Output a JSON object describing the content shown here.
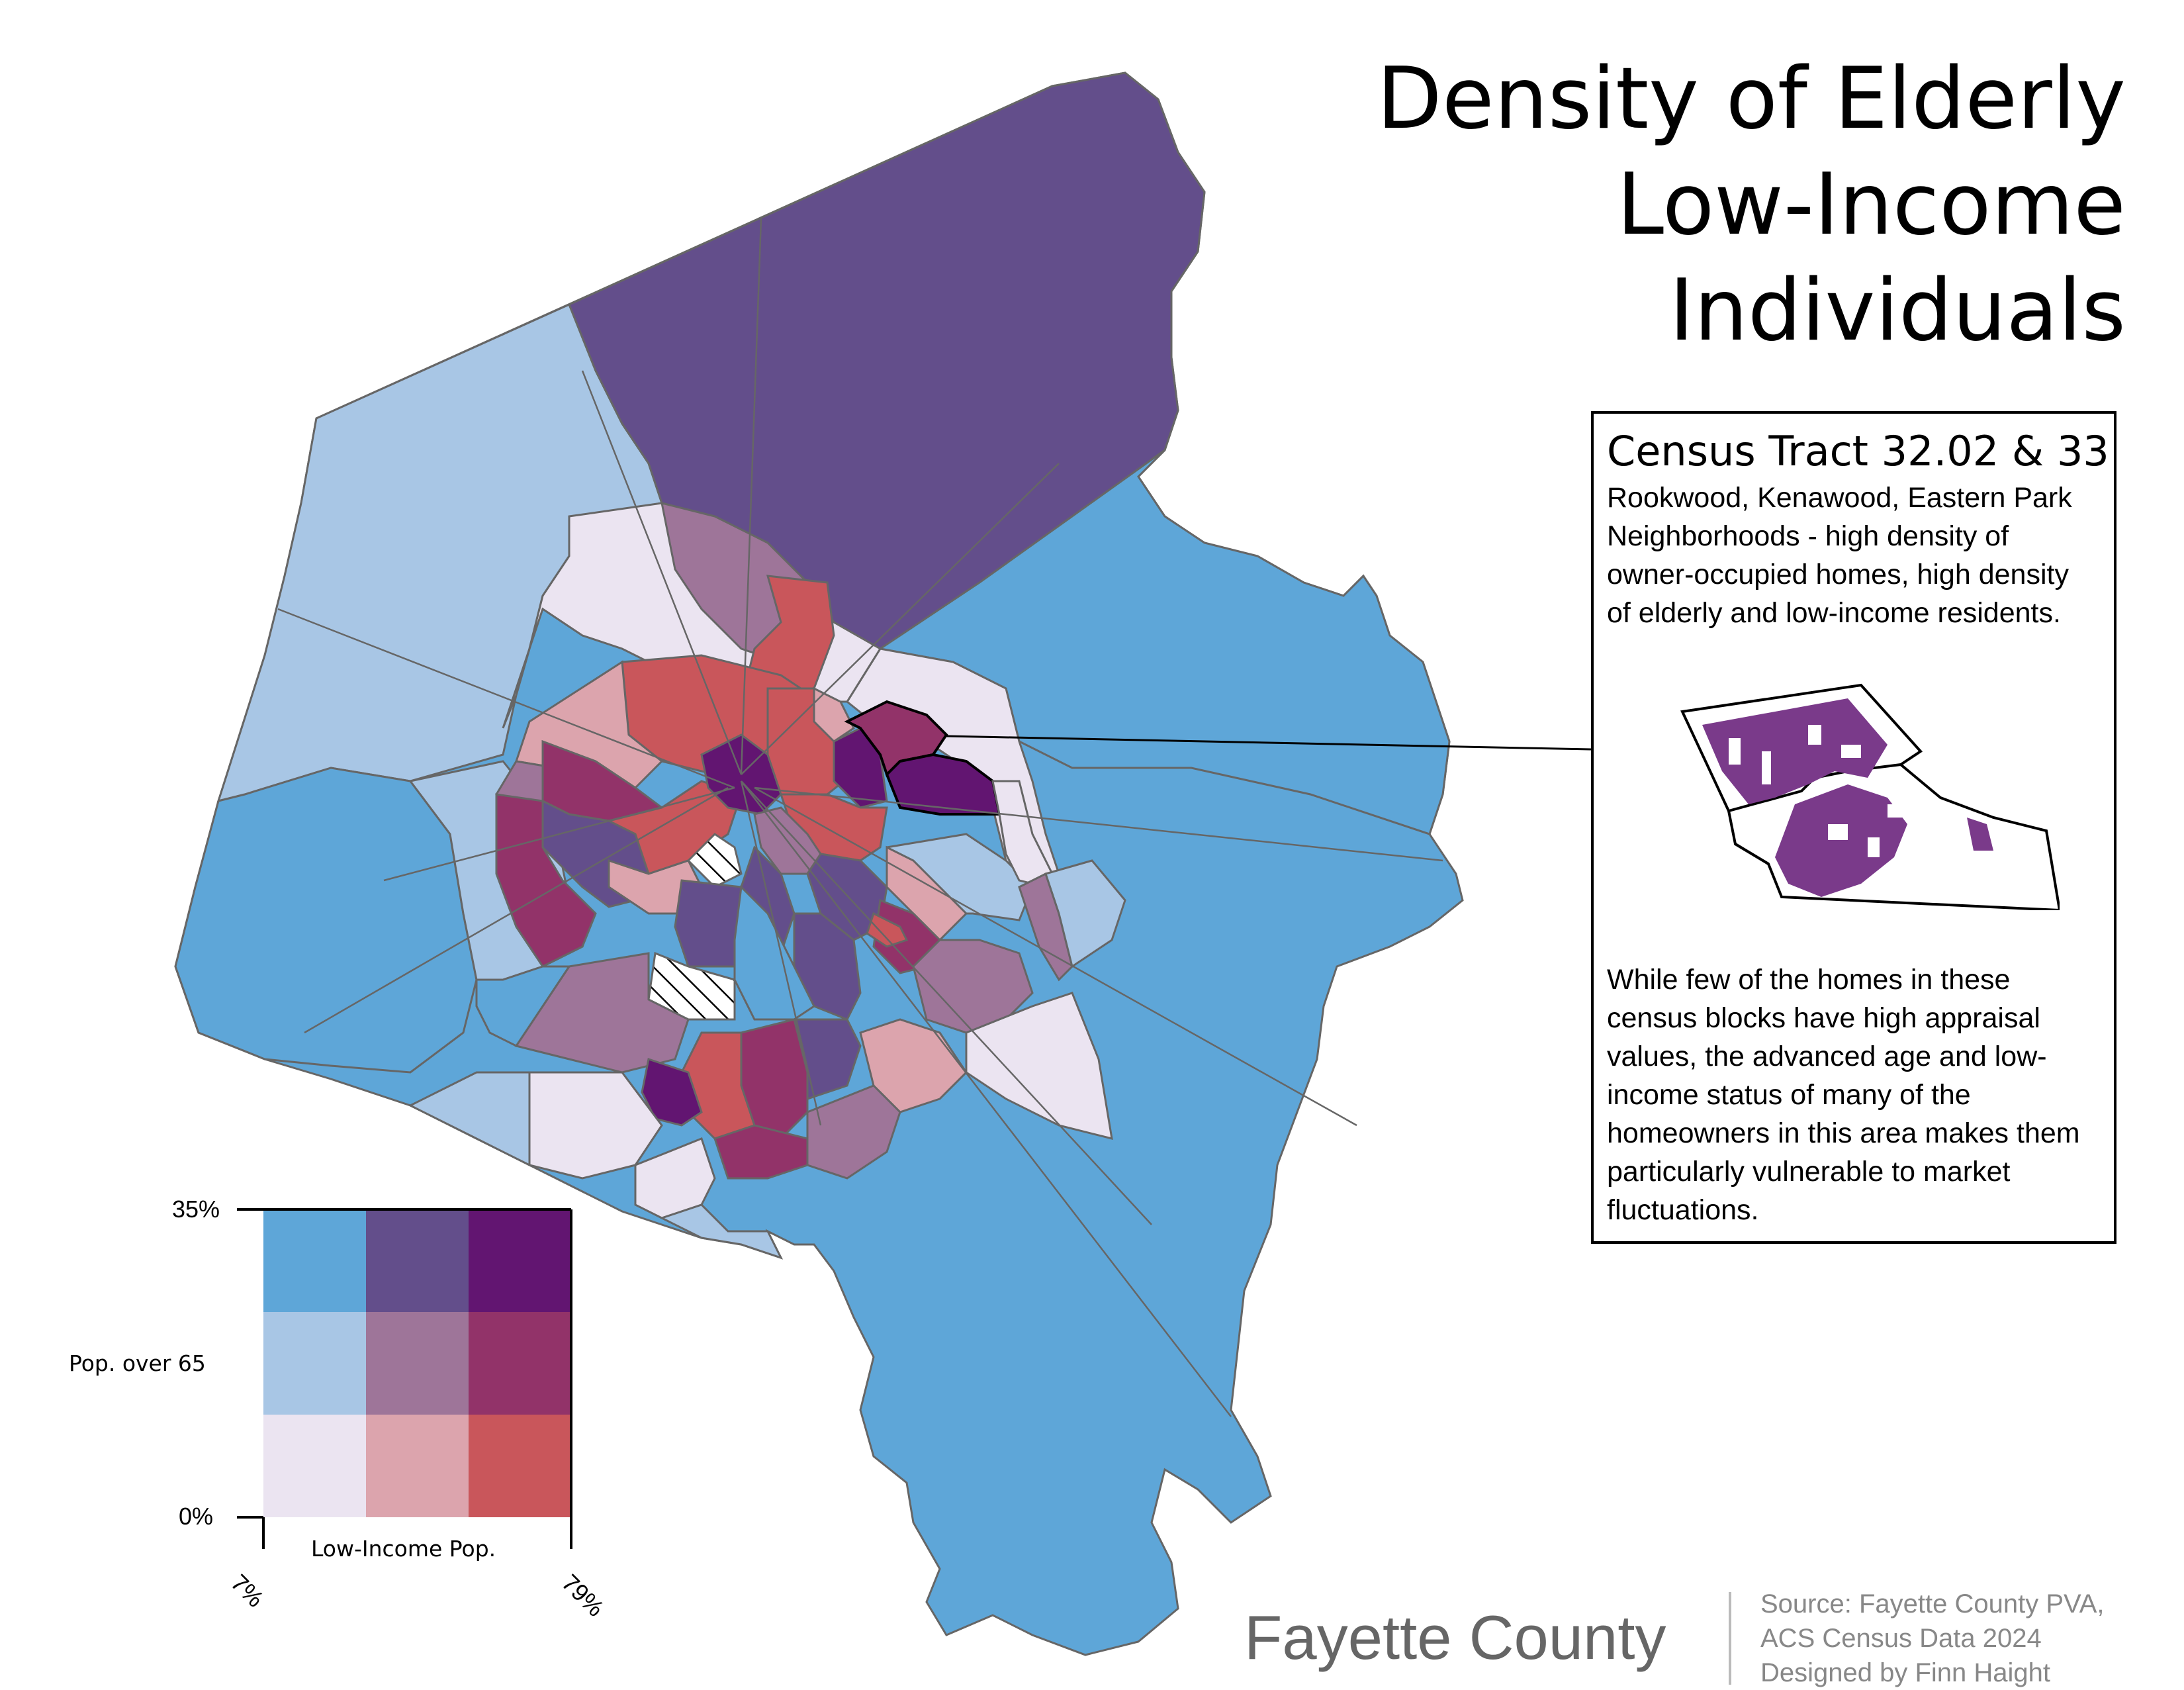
{
  "title": {
    "line1": "Density of Elderly",
    "line2": "Low-Income",
    "line3": "Individuals"
  },
  "info_box": {
    "title": "Census Tract 32.02 & 33",
    "description": "Rookwood, Kenawood, Eastern Park Neighborhoods - high density of owner-occupied homes, high density of elderly and low-income residents.",
    "body": "While few of the homes in these census blocks have high appraisal values, the advanced age and low-income status of many of the homeowners in this area makes them particularly vulnerable to market fluctuations."
  },
  "legend": {
    "y_label": "Pop. over 65",
    "y_max": "35%",
    "y_min": "0%",
    "x_label": "Low-Income Pop.",
    "x_min": "7%",
    "x_max": "79%",
    "grid_colors": [
      [
        "#5ea6d8",
        "#634e8b",
        "#621571"
      ],
      [
        "#a8c6e5",
        "#9e7599",
        "#923369"
      ],
      [
        "#ebe4f1",
        "#dca4ad",
        "#c9565b"
      ]
    ]
  },
  "footer": {
    "county": "Fayette County",
    "credits": [
      "Source: Fayette County PVA,",
      "ACS Census Data 2024",
      "Designed by Finn Haight"
    ]
  },
  "colors": {
    "low_low": "#ebe4f1",
    "mid_low": "#a8c6e5",
    "high_low": "#5ea6d8",
    "low_mid": "#dca4ad",
    "mid_mid": "#9e7599",
    "high_mid": "#634e8b",
    "low_high": "#c9565b",
    "mid_high": "#923369",
    "high_high": "#621571",
    "boundary": "#666666",
    "inset_buildings": "#7a3a8a"
  }
}
